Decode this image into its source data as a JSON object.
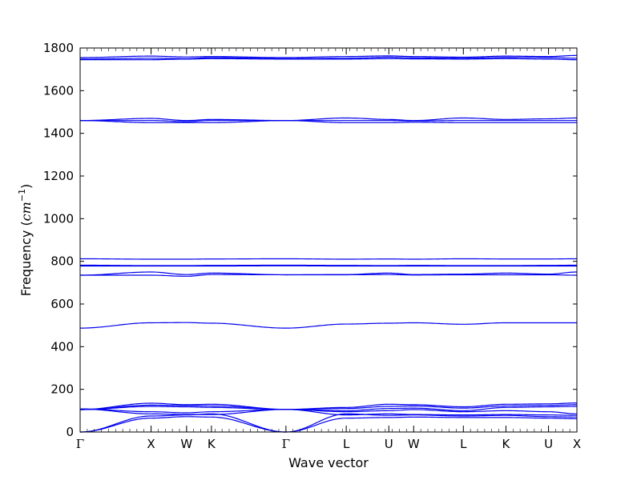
{
  "chart_data": {
    "type": "line",
    "title": "",
    "xlabel": "Wave vector",
    "ylabel": "Frequency (cm⁻¹)",
    "ylabel_prefix": "Frequency (",
    "ylabel_unit": "cm",
    "ylabel_exp": "−1",
    "ylabel_suffix": ")",
    "ylim": [
      0,
      1800
    ],
    "yticks": [
      0,
      200,
      400,
      600,
      800,
      1000,
      1200,
      1400,
      1600,
      1800
    ],
    "xlim": [
      0,
      7
    ],
    "xticks": [
      {
        "label": "Γ",
        "x": 0
      },
      {
        "label": "X",
        "x": 1
      },
      {
        "label": "W",
        "x": 1.5
      },
      {
        "label": "K",
        "x": 1.85
      },
      {
        "label": "Γ",
        "x": 2.9
      },
      {
        "label": "L",
        "x": 3.75
      },
      {
        "label": "U",
        "x": 4.35
      },
      {
        "label": "W",
        "x": 4.7
      },
      {
        "label": "L",
        "x": 5.4
      },
      {
        "label": "K",
        "x": 6.0
      },
      {
        "label": "U",
        "x": 6.6
      },
      {
        "label": "X",
        "x": 7
      }
    ],
    "line_color": "#0000ee",
    "series": [
      {
        "x": [
          0,
          1,
          1.5,
          1.85,
          2.9,
          3.75,
          4.35,
          4.7,
          5.4,
          6.0,
          6.6,
          7
        ],
        "values": [
          1755,
          1762,
          1758,
          1760,
          1755,
          1760,
          1763,
          1760,
          1757,
          1762,
          1760,
          1765
        ]
      },
      {
        "x": [
          0,
          1,
          1.5,
          1.85,
          2.9,
          3.75,
          4.35,
          4.7,
          5.4,
          6.0,
          6.6,
          7
        ],
        "values": [
          1748,
          1752,
          1750,
          1755,
          1750,
          1752,
          1757,
          1754,
          1752,
          1756,
          1755,
          1752
        ]
      },
      {
        "x": [
          0,
          1,
          1.5,
          1.85,
          2.9,
          3.75,
          4.35,
          4.7,
          5.4,
          6.0,
          6.6,
          7
        ],
        "values": [
          1745,
          1745,
          1748,
          1750,
          1748,
          1748,
          1750,
          1749,
          1748,
          1750,
          1748,
          1745
        ]
      },
      {
        "x": [
          0,
          1,
          1.5,
          1.85,
          2.9,
          3.75,
          4.35,
          4.7,
          5.4,
          6.0,
          6.6,
          7
        ],
        "values": [
          1460,
          1470,
          1460,
          1465,
          1460,
          1472,
          1465,
          1460,
          1472,
          1465,
          1468,
          1472
        ]
      },
      {
        "x": [
          0,
          1,
          1.5,
          1.85,
          2.9,
          3.75,
          4.35,
          4.7,
          5.4,
          6.0,
          6.6,
          7
        ],
        "values": [
          1460,
          1460,
          1455,
          1460,
          1460,
          1460,
          1460,
          1458,
          1460,
          1460,
          1460,
          1460
        ]
      },
      {
        "x": [
          0,
          1,
          1.5,
          1.85,
          2.9,
          3.75,
          4.35,
          4.7,
          5.4,
          6.0,
          6.6,
          7
        ],
        "values": [
          1460,
          1450,
          1450,
          1450,
          1460,
          1450,
          1450,
          1452,
          1450,
          1450,
          1450,
          1450
        ]
      },
      {
        "x": [
          0,
          1,
          1.5,
          1.85,
          2.9,
          3.75,
          4.35,
          4.7,
          5.4,
          6.0,
          6.6,
          7
        ],
        "values": [
          812,
          810,
          810,
          811,
          812,
          810,
          811,
          810,
          812,
          811,
          811,
          812
        ]
      },
      {
        "x": [
          0,
          1,
          1.5,
          1.85,
          2.9,
          3.75,
          4.35,
          4.7,
          5.4,
          6.0,
          6.6,
          7
        ],
        "values": [
          782,
          780,
          780,
          781,
          782,
          781,
          780,
          781,
          780,
          780,
          781,
          782
        ]
      },
      {
        "x": [
          0,
          1,
          1.5,
          1.85,
          2.9,
          3.75,
          4.35,
          4.7,
          5.4,
          6.0,
          6.6,
          7
        ],
        "values": [
          778,
          778,
          778,
          778,
          779,
          778,
          778,
          778,
          778,
          778,
          778,
          778
        ]
      },
      {
        "x": [
          0,
          1,
          1.5,
          1.85,
          2.9,
          3.75,
          4.35,
          4.7,
          5.4,
          6.0,
          6.6,
          7
        ],
        "values": [
          735,
          750,
          738,
          745,
          737,
          738,
          745,
          738,
          740,
          745,
          740,
          750
        ]
      },
      {
        "x": [
          0,
          1,
          1.5,
          1.85,
          2.9,
          3.75,
          4.35,
          4.7,
          5.4,
          6.0,
          6.6,
          7
        ],
        "values": [
          735,
          735,
          730,
          738,
          737,
          737,
          738,
          736,
          737,
          737,
          737,
          735
        ]
      },
      {
        "x": [
          0,
          1,
          1.5,
          1.85,
          2.9,
          3.75,
          4.35,
          4.7,
          5.4,
          6.0,
          6.6,
          7
        ],
        "values": [
          487,
          512,
          513,
          510,
          487,
          506,
          510,
          512,
          505,
          512,
          512,
          512
        ]
      },
      {
        "x": [
          0,
          1,
          1.5,
          1.85,
          2.9,
          3.75,
          4.35,
          4.7,
          5.4,
          6.0,
          6.6,
          7
        ],
        "values": [
          105,
          135,
          128,
          130,
          106,
          115,
          130,
          128,
          118,
          130,
          132,
          136
        ]
      },
      {
        "x": [
          0,
          1,
          1.5,
          1.85,
          2.9,
          3.75,
          4.35,
          4.7,
          5.4,
          6.0,
          6.6,
          7
        ],
        "values": [
          105,
          126,
          124,
          122,
          106,
          110,
          120,
          122,
          112,
          122,
          125,
          128
        ]
      },
      {
        "x": [
          0,
          1,
          1.5,
          1.85,
          2.9,
          3.75,
          4.35,
          4.7,
          5.4,
          6.0,
          6.6,
          7
        ],
        "values": [
          105,
          120,
          118,
          115,
          106,
          100,
          110,
          112,
          100,
          115,
          118,
          120
        ]
      },
      {
        "x": [
          0,
          1,
          1.5,
          1.85,
          2.9,
          3.75,
          4.35,
          4.7,
          5.4,
          6.0,
          6.6,
          7
        ],
        "values": [
          108,
          95,
          90,
          95,
          106,
          95,
          100,
          105,
          95,
          100,
          95,
          85
        ]
      },
      {
        "x": [
          0,
          1,
          1.5,
          1.85,
          2.9,
          3.75,
          4.35,
          4.7,
          5.4,
          6.0,
          6.6,
          7
        ],
        "values": [
          108,
          85,
          82,
          82,
          106,
          80,
          85,
          82,
          80,
          82,
          80,
          78
        ]
      },
      {
        "x": [
          0,
          1,
          1.5,
          1.85,
          2.9,
          3.75,
          4.35,
          4.7,
          5.4,
          6.0,
          6.6,
          7
        ],
        "values": [
          0,
          75,
          80,
          85,
          0,
          85,
          78,
          80,
          75,
          78,
          72,
          70
        ]
      },
      {
        "x": [
          0,
          1,
          1.5,
          1.85,
          2.9,
          3.75,
          4.35,
          4.7,
          5.4,
          6.0,
          6.6,
          7
        ],
        "values": [
          0,
          65,
          72,
          70,
          0,
          65,
          68,
          70,
          68,
          68,
          65,
          62
        ]
      }
    ]
  }
}
